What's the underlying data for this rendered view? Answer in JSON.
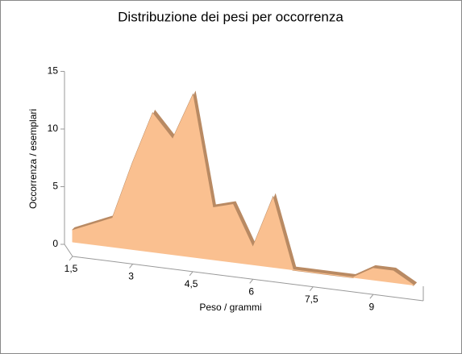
{
  "chart_data": {
    "type": "area3d",
    "title": "Distribuzione dei pesi per occorrenza",
    "x_label": "Peso / grammi",
    "y_label": "Occorrenza / esemplari",
    "x": [
      1.5,
      2.5,
      3,
      3.5,
      4,
      4.5,
      5,
      5.5,
      6,
      6.5,
      7,
      7.5,
      8,
      8.5,
      9,
      9.5,
      10
    ],
    "values": [
      1,
      2.5,
      7.5,
      12,
      10,
      14,
      4.5,
      5,
      1.5,
      6,
      0,
      0,
      0,
      0,
      1,
      1,
      0
    ],
    "color": "#fac090",
    "edge_color": "#b98a63",
    "xlim": [
      1.5,
      10.25
    ],
    "xticks": [
      {
        "value": 1.5,
        "label": "1,5"
      },
      3,
      {
        "value": 4.5,
        "label": "4,5"
      },
      6,
      {
        "value": 7.5,
        "label": "7,5"
      },
      9
    ],
    "ylim": [
      0,
      15
    ],
    "yticks": [
      0,
      5,
      10,
      15
    ]
  }
}
